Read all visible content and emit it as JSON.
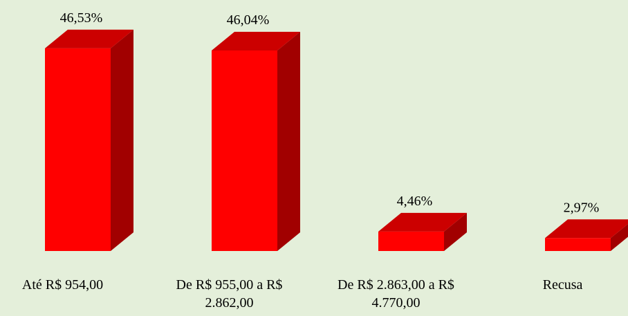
{
  "chart_data": {
    "type": "bar3d",
    "categories": [
      "Até R$ 954,00",
      "De R$ 955,00 a R$ 2.862,00",
      "De R$ 2.863,00 a R$ 4.770,00",
      "Recusa"
    ],
    "values": [
      46.53,
      46.04,
      4.46,
      2.97
    ],
    "value_labels": [
      "46,53%",
      "46,04%",
      "4,46%",
      "2,97%"
    ],
    "color": "#ff0000"
  }
}
